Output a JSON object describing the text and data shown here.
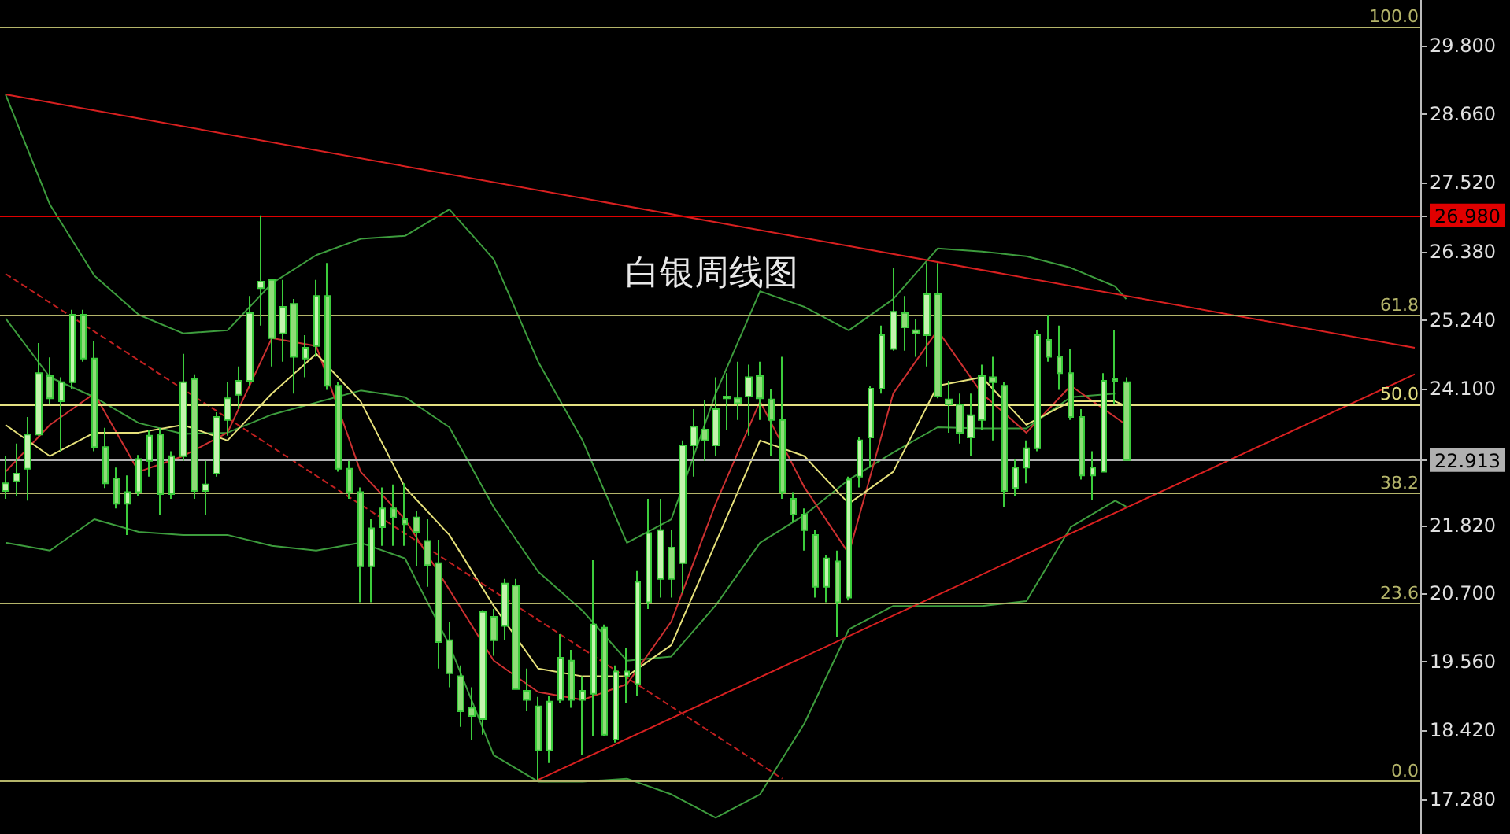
{
  "chart_data": {
    "type": "candlestick",
    "title": "白银周线图",
    "colors": [
      "#c4f4ae",
      "#c4f4ae",
      "#c4f4ae",
      "#c4f4ae",
      "#8fdc78",
      "#c4f4ae",
      "#c4f4ae",
      "#8fdc78",
      "#8fdc78",
      "#8fdc78",
      "#8fdc78",
      "#c4f4ae",
      "#c4f4ae",
      "#c4f4ae",
      "#8fdc78",
      "#c4f4ae",
      "#c4f4ae",
      "#8fdc78",
      "#c4f4ae",
      "#c4f4ae",
      "#c4f4ae",
      "#c4f4ae",
      "#c4f4ae",
      "#c4f4ae",
      "#8fdc78",
      "#c4f4ae",
      "#8fdc78",
      "#c4f4ae",
      "#c4f4ae",
      "#8fdc78",
      "#8fdc78",
      "#8fdc78",
      "#8fdc78",
      "#c4f4ae",
      "#c4f4ae",
      "#8fdc78",
      "#8fdc78",
      "#8fdc78",
      "#8fdc78",
      "#8fdc78",
      "#8fdc78",
      "#8fdc78",
      "#8fdc78",
      "#c4f4ae",
      "#8fdc78",
      "#c4f4ae",
      "#8fdc78",
      "#8fdc78",
      "#8fdc78",
      "#c4f4ae",
      "#c4f4ae",
      "#8fdc78",
      "#c4f4ae",
      "#c4f4ae",
      "#8fdc78",
      "#c4f4ae",
      "#c4f4ae",
      "#c4f4ae",
      "#c4f4ae",
      "#c4f4ae",
      "#8fdc78",
      "#c4f4ae",
      "#c4f4ae",
      "#8fdc78",
      "#c4f4ae",
      "#c4f4ae",
      "#8fdc78",
      "#c4f4ae",
      "#8fdc78",
      "#8fdc78",
      "#8fdc78",
      "#8fdc78",
      "#8fdc78",
      "#8fdc78",
      "#c4f4ae",
      "#8fdc78",
      "#c4f4ae",
      "#c4f4ae",
      "#c4f4ae",
      "#c4f4ae",
      "#c4f4ae",
      "#8fdc78",
      "#8fdc78",
      "#c4f4ae",
      "#8fdc78",
      "#8fdc78",
      "#8fdc78",
      "#c4f4ae",
      "#c4f4ae",
      "#8fdc78",
      "#8fdc78",
      "#c4f4ae",
      "#c4f4ae",
      "#c4f4ae",
      "#8fdc78",
      "#8fdc78",
      "#8fdc78",
      "#8fdc78",
      "#c4f4ae",
      "#c4f4ae",
      "#c4f4ae",
      "#8fdc78",
      null,
      null,
      null,
      null,
      null,
      null,
      null,
      null,
      null,
      null,
      null,
      null,
      null,
      null,
      null,
      null,
      null,
      null,
      null,
      null,
      null,
      null,
      null,
      null,
      null,
      null
    ],
    "tick_labels": "y",
    "y2lim": [
      -6.94,
      103.59
    ],
    "categories": [
      null,
      null,
      null,
      null,
      null,
      null,
      null,
      null,
      null,
      null,
      null,
      null,
      null,
      null,
      null,
      null,
      null,
      null,
      null,
      null,
      null,
      null,
      null,
      null,
      null,
      null,
      null,
      null,
      null,
      null,
      null,
      null,
      null,
      null,
      null,
      null,
      null,
      null,
      null,
      null,
      null,
      null,
      null,
      null,
      null,
      null,
      null,
      null,
      null,
      null,
      null,
      null,
      null,
      null,
      null,
      null,
      null,
      null,
      null,
      null,
      null,
      null,
      null,
      null,
      null,
      null,
      null,
      null,
      null,
      null,
      null,
      null,
      null,
      null,
      null,
      null,
      null,
      null,
      null,
      null,
      null,
      null,
      null,
      null,
      null,
      null,
      null,
      null,
      null,
      null,
      null,
      null,
      null,
      null,
      null,
      null,
      null,
      null,
      null,
      null,
      null,
      null,
      null,
      null,
      null,
      null,
      null,
      null,
      null,
      null,
      null,
      null,
      null,
      null,
      null,
      null,
      null,
      null,
      null,
      null,
      null,
      null,
      null,
      null,
      null,
      null,
      null,
      null
    ],
    "ylim": [
      16.7,
      30.56
    ],
    "yticks": [
      {
        "value": 17.28,
        "label": "17.280"
      },
      {
        "value": 18.42,
        "label": "18.420"
      },
      {
        "value": 19.56,
        "label": "19.560"
      },
      {
        "value": 20.7,
        "label": "20.700"
      },
      {
        "value": 21.82,
        "label": "21.820"
      },
      {
        "value": 22.913,
        "label": "22.913"
      },
      {
        "value": 24.1,
        "label": "24.100"
      },
      {
        "value": 25.24,
        "label": "25.240"
      },
      {
        "value": 26.38,
        "label": "26.380"
      },
      {
        "value": 26.98,
        "label": "26.980"
      },
      {
        "value": 27.52,
        "label": "27.520"
      },
      {
        "value": 28.66,
        "label": "28.660"
      },
      {
        "value": 29.8,
        "label": "29.800"
      }
    ],
    "ohlc": [
      [
        22.4,
        22.98,
        22.27,
        22.53
      ],
      [
        22.56,
        23.19,
        22.32,
        22.69
      ],
      [
        22.77,
        23.63,
        22.24,
        23.34
      ],
      [
        23.34,
        24.86,
        23.32,
        24.36
      ],
      [
        24.31,
        24.62,
        23.84,
        23.94
      ],
      [
        23.89,
        24.29,
        23.06,
        24.21
      ],
      [
        24.21,
        25.41,
        24.1,
        25.33
      ],
      [
        25.33,
        25.41,
        24.55,
        24.6
      ],
      [
        24.6,
        24.89,
        23.06,
        23.13
      ],
      [
        23.13,
        23.45,
        22.45,
        22.53
      ],
      [
        22.61,
        22.79,
        22.11,
        22.19
      ],
      [
        22.19,
        22.66,
        21.67,
        22.38
      ],
      [
        22.38,
        23.0,
        22.32,
        22.93
      ],
      [
        22.9,
        23.42,
        22.64,
        23.32
      ],
      [
        23.34,
        23.45,
        22.01,
        22.35
      ],
      [
        22.35,
        23.06,
        22.27,
        22.98
      ],
      [
        22.98,
        24.68,
        22.9,
        24.21
      ],
      [
        24.26,
        24.34,
        22.27,
        22.4
      ],
      [
        22.4,
        22.9,
        22.01,
        22.51
      ],
      [
        22.69,
        23.71,
        22.64,
        23.63
      ],
      [
        23.58,
        24.21,
        23.32,
        23.94
      ],
      [
        24.0,
        24.47,
        23.76,
        24.23
      ],
      [
        24.23,
        25.64,
        24.15,
        25.36
      ],
      [
        25.77,
        26.98,
        25.15,
        25.88
      ],
      [
        25.91,
        25.93,
        24.47,
        24.94
      ],
      [
        25.02,
        25.91,
        24.55,
        25.46
      ],
      [
        25.51,
        25.59,
        24.02,
        24.63
      ],
      [
        24.6,
        24.99,
        24.29,
        24.78
      ],
      [
        24.81,
        25.91,
        24.63,
        25.64
      ],
      [
        25.64,
        26.19,
        24.08,
        24.15
      ],
      [
        24.15,
        24.21,
        22.72,
        22.77
      ],
      [
        22.77,
        22.9,
        22.27,
        22.38
      ],
      [
        22.38,
        22.46,
        20.55,
        21.15
      ],
      [
        21.15,
        21.93,
        20.55,
        21.78
      ],
      [
        21.8,
        22.46,
        21.49,
        22.11
      ],
      [
        22.11,
        22.51,
        21.49,
        21.96
      ],
      [
        21.93,
        22.53,
        21.49,
        21.85
      ],
      [
        21.96,
        22.06,
        21.15,
        21.72
      ],
      [
        21.57,
        21.93,
        20.81,
        21.17
      ],
      [
        21.2,
        21.59,
        19.45,
        19.89
      ],
      [
        19.92,
        20.23,
        19.14,
        19.37
      ],
      [
        19.32,
        19.5,
        18.48,
        18.74
      ],
      [
        18.8,
        19.14,
        18.27,
        18.66
      ],
      [
        18.61,
        20.42,
        18.35,
        20.39
      ],
      [
        20.31,
        20.44,
        19.66,
        19.92
      ],
      [
        20.16,
        20.94,
        19.92,
        20.86
      ],
      [
        20.83,
        20.94,
        19.11,
        19.11
      ],
      [
        19.08,
        19.45,
        18.74,
        18.93
      ],
      [
        18.82,
        18.98,
        17.6,
        18.09
      ],
      [
        18.09,
        19.0,
        17.88,
        18.9
      ],
      [
        18.93,
        20.02,
        18.87,
        19.63
      ],
      [
        19.58,
        19.76,
        18.8,
        18.93
      ],
      [
        18.93,
        19.32,
        18.01,
        19.08
      ],
      [
        19.03,
        21.25,
        18.33,
        20.18
      ],
      [
        20.13,
        20.18,
        18.33,
        18.35
      ],
      [
        18.27,
        19.5,
        18.22,
        19.4
      ],
      [
        19.32,
        19.79,
        18.87,
        19.4
      ],
      [
        19.19,
        21.07,
        19.0,
        20.89
      ],
      [
        20.55,
        22.27,
        20.44,
        21.7
      ],
      [
        20.94,
        22.27,
        20.63,
        21.75
      ],
      [
        21.46,
        21.75,
        20.63,
        20.94
      ],
      [
        21.2,
        23.24,
        20.7,
        23.16
      ],
      [
        23.16,
        23.76,
        22.64,
        23.47
      ],
      [
        23.42,
        23.91,
        22.9,
        23.24
      ],
      [
        23.16,
        24.29,
        22.98,
        23.76
      ],
      [
        23.94,
        24.36,
        23.42,
        23.97
      ],
      [
        23.94,
        24.55,
        23.58,
        23.86
      ],
      [
        23.97,
        24.5,
        23.32,
        24.29
      ],
      [
        24.31,
        24.55,
        23.58,
        23.94
      ],
      [
        23.92,
        24.1,
        22.98,
        23.58
      ],
      [
        23.58,
        24.63,
        22.27,
        22.38
      ],
      [
        22.27,
        22.38,
        21.88,
        22.01
      ],
      [
        22.01,
        22.11,
        21.41,
        21.75
      ],
      [
        21.67,
        21.75,
        20.63,
        20.81
      ],
      [
        20.81,
        21.33,
        20.55,
        21.28
      ],
      [
        21.23,
        21.41,
        19.97,
        20.55
      ],
      [
        20.63,
        22.64,
        20.58,
        22.59
      ],
      [
        22.64,
        23.29,
        22.46,
        23.24
      ],
      [
        23.29,
        24.15,
        22.79,
        24.1
      ],
      [
        24.1,
        25.15,
        24.02,
        24.99
      ],
      [
        24.76,
        26.11,
        24.73,
        25.38
      ],
      [
        25.36,
        25.64,
        24.73,
        25.12
      ],
      [
        25.07,
        25.25,
        24.63,
        25.02
      ],
      [
        24.99,
        26.19,
        24.47,
        25.67
      ],
      [
        25.67,
        26.19,
        23.94,
        23.97
      ],
      [
        23.92,
        24.23,
        23.37,
        23.84
      ],
      [
        23.84,
        24.02,
        23.19,
        23.37
      ],
      [
        23.29,
        24.02,
        22.98,
        23.66
      ],
      [
        23.58,
        24.5,
        23.42,
        24.31
      ],
      [
        24.29,
        24.63,
        23.24,
        24.21
      ],
      [
        24.15,
        24.21,
        22.14,
        22.4
      ],
      [
        22.45,
        22.92,
        22.32,
        22.79
      ],
      [
        22.79,
        23.24,
        22.53,
        23.11
      ],
      [
        23.11,
        25.07,
        23.06,
        24.99
      ],
      [
        24.91,
        25.33,
        24.55,
        24.63
      ],
      [
        24.63,
        25.15,
        24.08,
        24.36
      ],
      [
        24.36,
        24.76,
        23.58,
        23.63
      ],
      [
        23.63,
        23.76,
        22.59,
        22.66
      ],
      [
        22.66,
        23.06,
        22.25,
        22.79
      ],
      [
        22.72,
        24.36,
        22.72,
        24.23
      ],
      [
        24.23,
        25.07,
        23.84,
        24.26
      ],
      [
        24.21,
        24.29,
        22.9,
        22.913
      ],
      null,
      null,
      null,
      null,
      null,
      null,
      null,
      null,
      null,
      null,
      null,
      null,
      null,
      null,
      null,
      null,
      null,
      null,
      null,
      null,
      null,
      null,
      null,
      null,
      null,
      null
    ],
    "series": [
      {
        "type": "line",
        "color": "#3d9c3d",
        "values": [
          28.99,
          null,
          null,
          null,
          27.16,
          null,
          null,
          null,
          25.98,
          null,
          null,
          null,
          25.33,
          null,
          null,
          null,
          25.02,
          null,
          null,
          null,
          25.07,
          null,
          null,
          null,
          25.85,
          null,
          null,
          null,
          26.32,
          null,
          null,
          null,
          26.59,
          null,
          null,
          null,
          26.64,
          null,
          null,
          null,
          27.08,
          null,
          null,
          null,
          26.25,
          null,
          null,
          null,
          24.55,
          null,
          null,
          null,
          23.24,
          null,
          null,
          null,
          21.54,
          null,
          null,
          null,
          21.93,
          null,
          null,
          null,
          24.02,
          null,
          null,
          null,
          25.72,
          null,
          null,
          null,
          25.46,
          null,
          null,
          null,
          25.07,
          null,
          null,
          null,
          25.59,
          null,
          null,
          null,
          26.43,
          null,
          null,
          null,
          26.38,
          null,
          null,
          null,
          26.3,
          null,
          null,
          null,
          26.11,
          null,
          null,
          null,
          25.8,
          25.59,
          null,
          null,
          null,
          null,
          null,
          null,
          null,
          null,
          null,
          null,
          null,
          null,
          null,
          null,
          null,
          null,
          null,
          null,
          null,
          null,
          null,
          null,
          null,
          null,
          null,
          null
        ]
      },
      {
        "type": "line",
        "color": "#3d9c3d",
        "values": [
          25.27,
          null,
          null,
          null,
          24.29,
          null,
          null,
          null,
          23.96,
          null,
          null,
          null,
          23.53,
          null,
          null,
          null,
          23.35,
          null,
          null,
          null,
          23.37,
          null,
          null,
          null,
          23.67,
          null,
          null,
          null,
          23.87,
          null,
          null,
          null,
          24.07,
          null,
          null,
          null,
          23.96,
          null,
          null,
          null,
          23.46,
          null,
          null,
          null,
          22.13,
          null,
          null,
          null,
          21.06,
          null,
          null,
          null,
          20.41,
          null,
          null,
          null,
          19.58,
          null,
          null,
          null,
          19.65,
          null,
          null,
          null,
          20.5,
          null,
          null,
          null,
          21.54,
          null,
          null,
          null,
          22.0,
          null,
          null,
          null,
          22.59,
          null,
          null,
          null,
          23.04,
          null,
          null,
          null,
          23.46,
          null,
          null,
          null,
          23.44,
          null,
          null,
          null,
          23.44,
          null,
          null,
          null,
          23.96,
          null,
          null,
          null,
          24.02,
          null,
          null,
          null,
          null,
          null,
          null,
          null,
          null,
          null,
          null,
          null,
          null,
          null,
          null,
          null,
          null,
          null,
          null,
          null,
          null,
          null,
          null,
          null,
          null,
          null,
          null,
          null
        ]
      },
      {
        "type": "line",
        "color": "#3d9c3d",
        "values": [
          21.54,
          null,
          null,
          null,
          21.41,
          null,
          null,
          null,
          21.93,
          null,
          null,
          null,
          21.72,
          null,
          null,
          null,
          21.67,
          null,
          null,
          null,
          21.67,
          null,
          null,
          null,
          21.49,
          null,
          null,
          null,
          21.41,
          null,
          null,
          null,
          21.54,
          null,
          null,
          null,
          21.28,
          null,
          null,
          null,
          19.84,
          null,
          null,
          null,
          18.01,
          null,
          null,
          null,
          17.57,
          null,
          null,
          null,
          17.57,
          null,
          null,
          null,
          17.62,
          null,
          null,
          null,
          17.36,
          null,
          null,
          null,
          16.97,
          null,
          null,
          null,
          17.36,
          null,
          null,
          null,
          18.54,
          null,
          null,
          null,
          20.1,
          null,
          null,
          null,
          20.49,
          null,
          null,
          null,
          20.49,
          null,
          null,
          null,
          20.49,
          null,
          null,
          null,
          20.57,
          null,
          null,
          null,
          21.8,
          null,
          null,
          null,
          22.24,
          22.14,
          null,
          null,
          null,
          null,
          null,
          null,
          null,
          null,
          null,
          null,
          null,
          null,
          null,
          null,
          null,
          null,
          null,
          null,
          null,
          null,
          null,
          null,
          null,
          null,
          null,
          null
        ]
      },
      {
        "type": "line",
        "color": "#cc3030",
        "values": [
          22.72,
          null,
          null,
          null,
          23.5,
          null,
          null,
          null,
          24.02,
          null,
          null,
          null,
          22.72,
          null,
          null,
          null,
          22.98,
          null,
          null,
          null,
          23.37,
          null,
          null,
          null,
          24.94,
          null,
          null,
          null,
          24.81,
          null,
          null,
          null,
          22.72,
          null,
          null,
          null,
          21.93,
          null,
          null,
          null,
          20.76,
          null,
          null,
          null,
          19.58,
          null,
          null,
          null,
          19.06,
          null,
          null,
          null,
          18.93,
          null,
          null,
          null,
          19.19,
          null,
          null,
          null,
          20.23,
          null,
          null,
          null,
          22.19,
          null,
          null,
          null,
          23.89,
          null,
          null,
          null,
          22.46,
          null,
          null,
          null,
          21.36,
          null,
          null,
          null,
          24.02,
          null,
          null,
          null,
          25.07,
          null,
          null,
          null,
          24.02,
          null,
          null,
          null,
          23.37,
          null,
          null,
          null,
          24.15,
          null,
          null,
          null,
          23.63,
          23.5,
          null,
          null,
          null,
          null,
          null,
          null,
          null,
          null,
          null,
          null,
          null,
          null,
          null,
          null,
          null,
          null,
          null,
          null,
          null,
          null,
          null,
          null,
          null,
          null,
          null,
          null
        ]
      },
      {
        "type": "line",
        "color": "#e6e07a",
        "values": [
          23.5,
          null,
          null,
          null,
          22.98,
          null,
          null,
          null,
          23.37,
          null,
          null,
          null,
          23.37,
          null,
          null,
          null,
          23.5,
          null,
          null,
          null,
          23.24,
          null,
          null,
          null,
          24.02,
          null,
          null,
          null,
          24.68,
          null,
          null,
          null,
          23.89,
          null,
          null,
          null,
          22.46,
          null,
          null,
          null,
          21.67,
          null,
          null,
          null,
          20.49,
          null,
          null,
          null,
          19.45,
          null,
          null,
          null,
          19.32,
          null,
          null,
          null,
          19.32,
          null,
          null,
          null,
          19.84,
          null,
          null,
          null,
          21.54,
          null,
          null,
          null,
          23.24,
          null,
          null,
          null,
          22.98,
          null,
          null,
          null,
          22.19,
          null,
          null,
          null,
          22.72,
          null,
          null,
          null,
          24.15,
          null,
          null,
          null,
          24.29,
          null,
          null,
          null,
          23.5,
          null,
          null,
          null,
          23.89,
          null,
          null,
          null,
          23.89,
          23.81,
          null,
          null,
          null,
          null,
          null,
          null,
          null,
          null,
          null,
          null,
          null,
          null,
          null,
          null,
          null,
          null,
          null,
          null,
          null,
          null,
          null,
          null,
          null,
          null,
          null,
          null
        ]
      },
      {
        "type": "line",
        "color": "#d82020",
        "values": [
          28.99,
          null,
          null,
          null,
          null,
          null,
          null,
          null,
          null,
          null,
          null,
          null,
          null,
          null,
          null,
          null,
          null,
          null,
          null,
          null,
          null,
          null,
          null,
          null,
          null,
          null,
          null,
          null,
          null,
          null,
          null,
          null,
          null,
          null,
          null,
          null,
          null,
          null,
          null,
          null,
          null,
          null,
          null,
          null,
          null,
          null,
          null,
          null,
          null,
          null,
          null,
          null,
          null,
          null,
          null,
          null,
          null,
          null,
          null,
          null,
          null,
          null,
          null,
          null,
          null,
          null,
          null,
          null,
          null,
          null,
          null,
          null,
          null,
          null,
          null,
          null,
          null,
          null,
          null,
          null,
          null,
          null,
          null,
          null,
          null,
          null,
          null,
          null,
          null,
          null,
          null,
          null,
          null,
          null,
          null,
          null,
          null,
          null,
          null,
          null,
          null,
          null,
          null,
          null,
          null,
          null,
          null,
          null,
          null,
          null,
          null,
          null,
          null,
          null,
          null,
          null,
          null,
          null,
          null,
          null,
          null,
          null,
          null,
          null,
          null,
          null,
          null,
          24.78
        ]
      },
      {
        "type": "line",
        "color": "#d82020",
        "values": [
          null,
          null,
          null,
          null,
          null,
          null,
          null,
          null,
          null,
          null,
          null,
          null,
          null,
          null,
          null,
          null,
          null,
          null,
          null,
          null,
          null,
          null,
          null,
          null,
          null,
          null,
          null,
          null,
          null,
          null,
          null,
          null,
          null,
          null,
          null,
          null,
          null,
          null,
          null,
          null,
          null,
          null,
          null,
          null,
          null,
          null,
          null,
          null,
          17.6,
          null,
          null,
          null,
          null,
          null,
          null,
          null,
          null,
          null,
          null,
          null,
          null,
          null,
          null,
          null,
          null,
          null,
          null,
          null,
          null,
          null,
          null,
          null,
          null,
          null,
          null,
          null,
          null,
          null,
          null,
          null,
          null,
          null,
          null,
          null,
          null,
          null,
          null,
          null,
          null,
          null,
          null,
          null,
          null,
          null,
          null,
          null,
          null,
          null,
          null,
          null,
          null,
          null,
          null,
          null,
          null,
          null,
          null,
          null,
          null,
          null,
          null,
          null,
          null,
          null,
          null,
          null,
          null,
          null,
          null,
          null,
          null,
          null,
          null,
          null,
          null,
          null,
          null,
          24.34
        ]
      },
      {
        "type": "line",
        "color": "#c02020",
        "line_style": "dashed",
        "values": [
          26.01,
          null,
          null,
          null,
          null,
          null,
          null,
          null,
          null,
          null,
          null,
          null,
          null,
          null,
          null,
          null,
          null,
          null,
          null,
          null,
          null,
          null,
          null,
          null,
          null,
          null,
          null,
          null,
          null,
          null,
          null,
          null,
          null,
          null,
          null,
          null,
          null,
          null,
          null,
          null,
          null,
          null,
          null,
          null,
          null,
          null,
          null,
          null,
          null,
          null,
          null,
          null,
          null,
          null,
          null,
          null,
          null,
          null,
          null,
          null,
          null,
          null,
          null,
          null,
          null,
          null,
          null,
          null,
          null,
          null,
          17.62,
          null,
          null,
          null,
          null,
          null,
          null,
          null,
          null,
          null,
          null,
          null,
          null,
          null,
          null,
          null,
          null,
          null,
          null,
          null,
          null,
          null,
          null,
          null,
          null,
          null,
          null,
          null,
          null,
          null,
          null,
          null,
          null,
          null,
          null,
          null,
          null,
          null,
          null,
          null,
          null,
          null,
          null,
          null,
          null,
          null,
          null,
          null,
          null,
          null,
          null,
          null,
          null,
          null,
          null,
          null,
          null,
          null
        ]
      }
    ],
    "ref_lines": [
      {
        "axis": "y2",
        "value": 100,
        "label": "100.0",
        "color": "#b4b46a"
      },
      {
        "axis": "y2",
        "value": 61.8,
        "label": "61.8",
        "color": "#b4b46a"
      },
      {
        "axis": "y2",
        "value": 50,
        "label": "50.0",
        "color": "#e4e082"
      },
      {
        "axis": "y2",
        "value": 38.2,
        "label": "38.2",
        "color": "#b4b46a"
      },
      {
        "axis": "y2",
        "value": 23.6,
        "label": "23.6",
        "color": "#b4b46a"
      },
      {
        "axis": "y2",
        "value": 0,
        "label": "0.0",
        "color": "#b4b46a"
      },
      {
        "axis": "y",
        "value": 26.98,
        "label": null,
        "color": "#e00000"
      },
      {
        "axis": "y",
        "value": 22.913,
        "label": null,
        "color": "#b0b0b0"
      }
    ]
  }
}
